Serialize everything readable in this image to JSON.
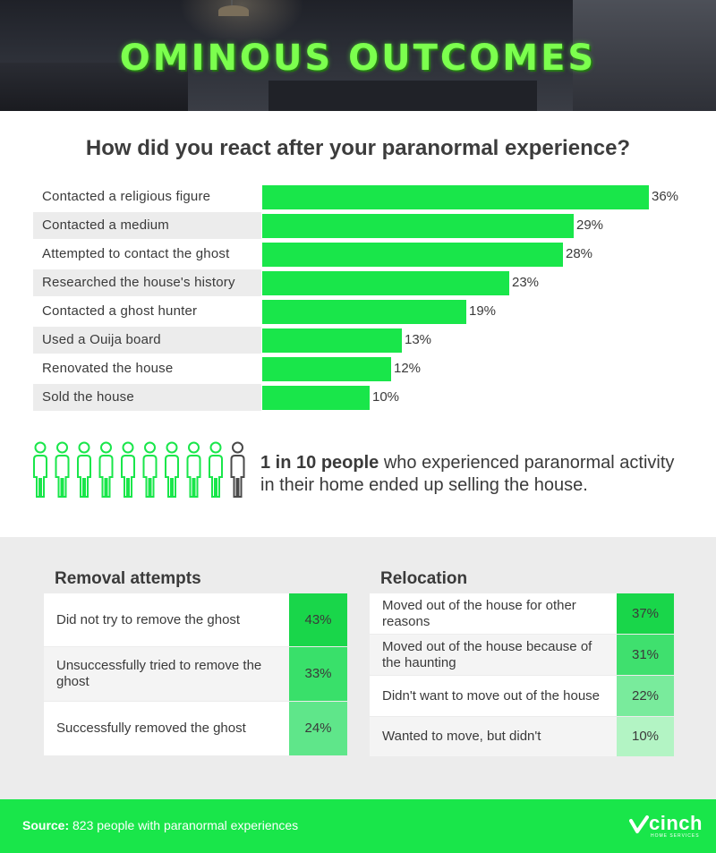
{
  "banner": {
    "title": "OMINOUS OUTCOMES"
  },
  "question": "How did you react after your paranormal experience?",
  "chart_data": {
    "type": "bar",
    "title": "How did you react after your paranormal experience?",
    "categories": [
      "Contacted a religious figure",
      "Contacted a medium",
      "Attempted to contact the ghost",
      "Researched the house's history",
      "Contacted a ghost hunter",
      "Used a Ouija board",
      "Renovated the house",
      "Sold the house"
    ],
    "values": [
      36,
      29,
      28,
      23,
      19,
      13,
      12,
      10
    ],
    "value_labels": [
      "36%",
      "29%",
      "28%",
      "23%",
      "19%",
      "13%",
      "12%",
      "10%"
    ],
    "orientation": "horizontal",
    "xlim": [
      0,
      36
    ],
    "grid": false,
    "bar_color": "#19e64a"
  },
  "callout": {
    "highlight": "1 in 10 people",
    "text": " who experienced paranormal activity in their home ended up selling the house.",
    "people_total": 10,
    "people_highlighted": 1
  },
  "removal": {
    "title": "Removal attempts",
    "rows": [
      {
        "label": "Did not try to remove the ghost",
        "value": "43%",
        "color": "#19d64a"
      },
      {
        "label": "Unsuccessfully tried to remove the ghost",
        "value": "33%",
        "color": "#39e06a"
      },
      {
        "label": "Successfully removed the ghost",
        "value": "24%",
        "color": "#5fe68a"
      }
    ]
  },
  "relocation": {
    "title": "Relocation",
    "rows": [
      {
        "label": "Moved out of the house for other reasons",
        "value": "37%",
        "color": "#19d64a"
      },
      {
        "label": "Moved out of the house because of the haunting",
        "value": "31%",
        "color": "#3fe06e"
      },
      {
        "label": "Didn't want to move out of the house",
        "value": "22%",
        "color": "#79eb9c"
      },
      {
        "label": "Wanted to move, but didn't",
        "value": "10%",
        "color": "#b3f4c4"
      }
    ]
  },
  "footer": {
    "source_label": "Source:",
    "source_text": " 823 people with paranormal experiences",
    "logo": "cinch",
    "logo_sub": "HOME SERVICES"
  },
  "colors": {
    "accent": "#19e64a",
    "title_green": "#7cff4e",
    "panel_bg": "#ececec"
  }
}
